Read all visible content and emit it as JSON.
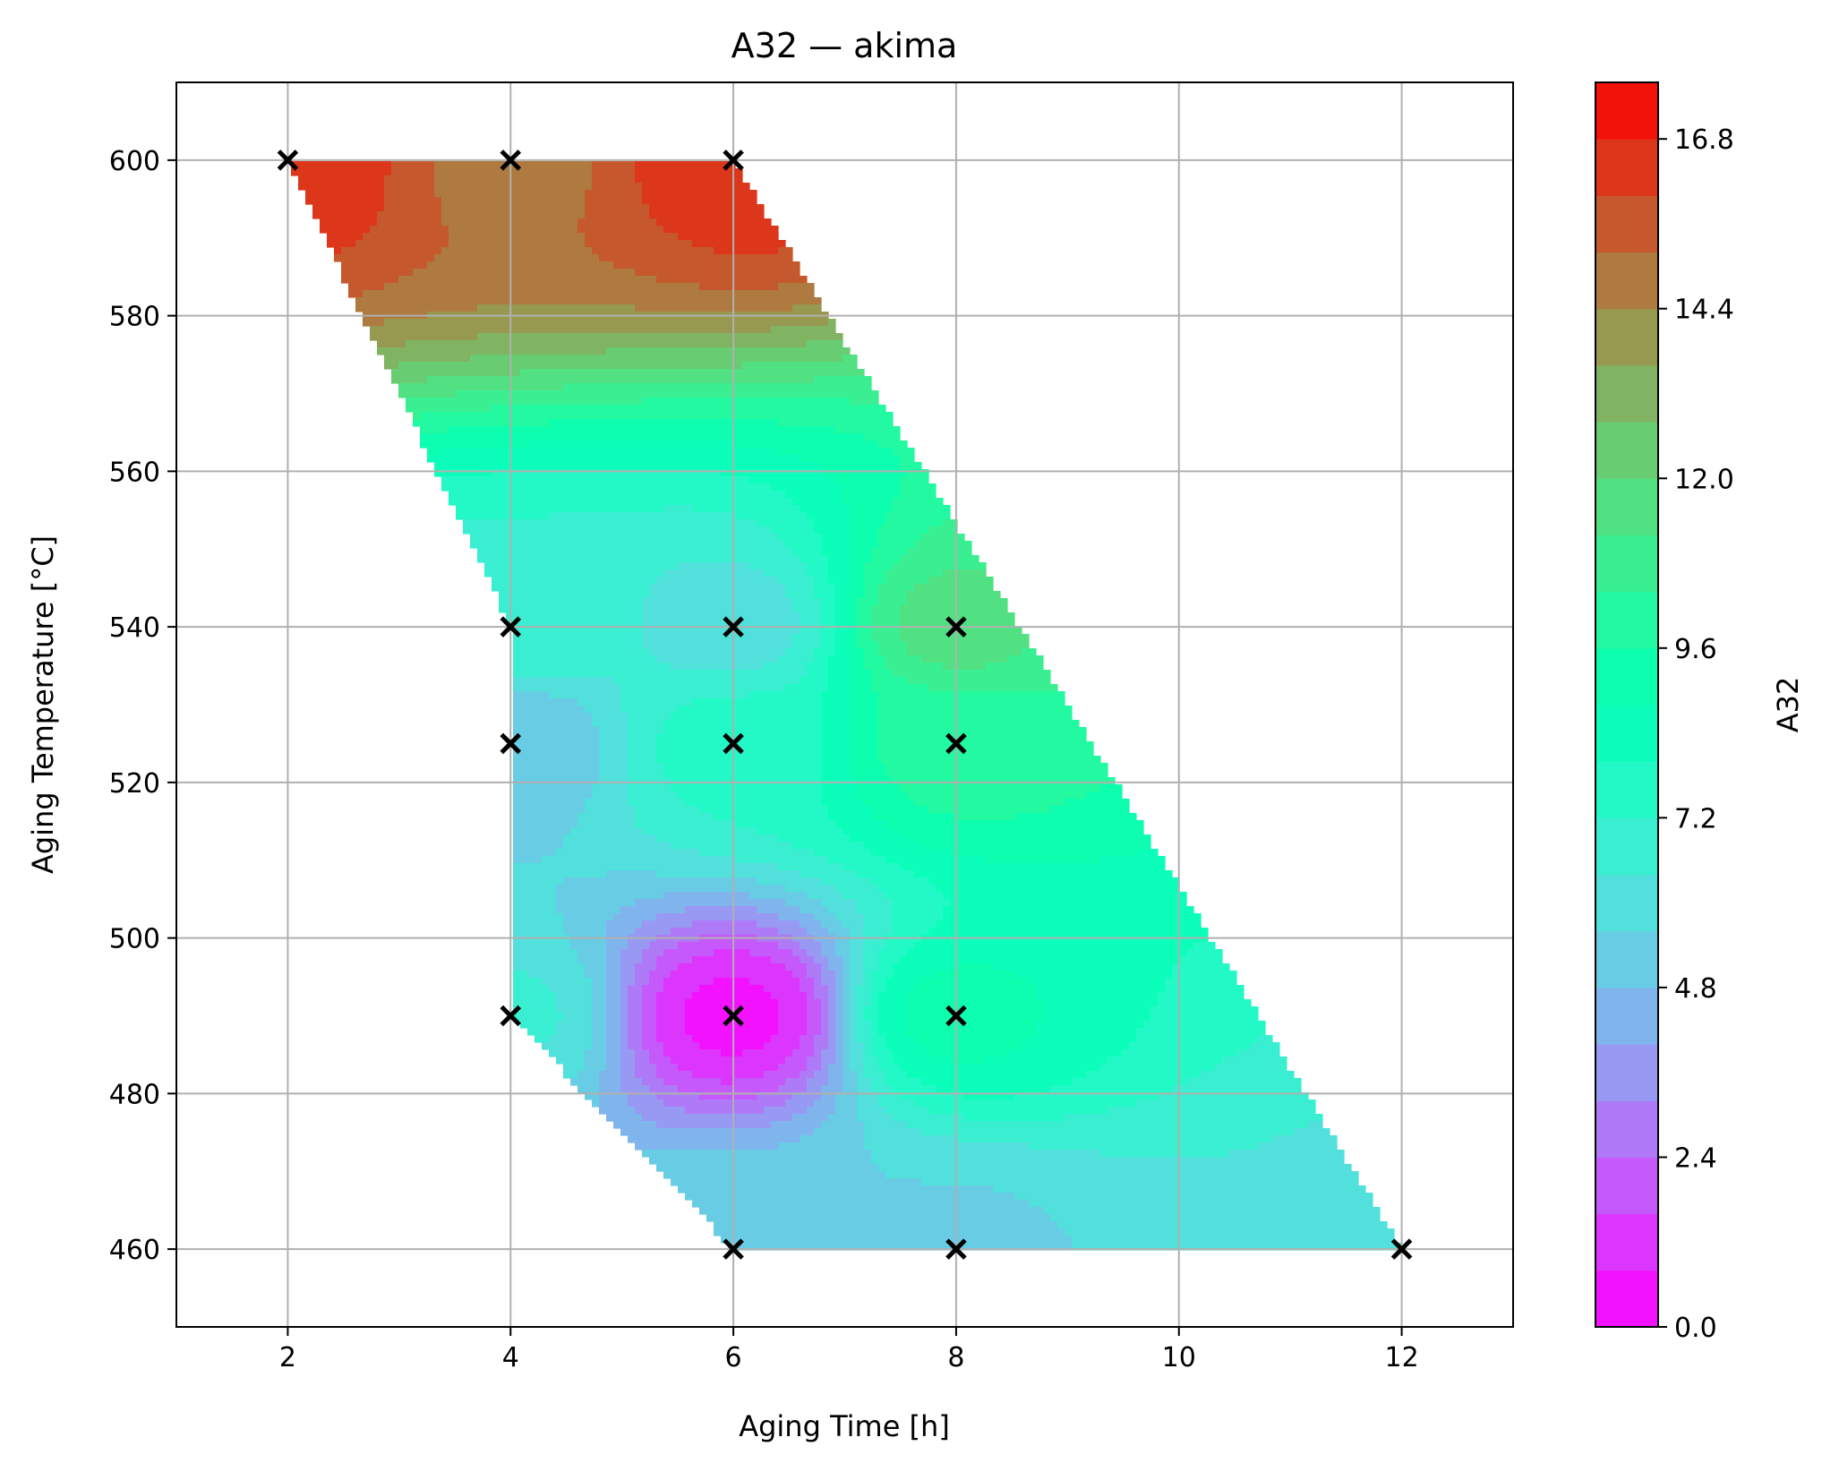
{
  "chart_data": {
    "type": "heatmap",
    "title": "A32 — akima",
    "xlabel": "Aging Time [h]",
    "ylabel": "Aging Temperature [°C]",
    "xlim": [
      1,
      13
    ],
    "ylim": [
      450,
      610
    ],
    "x_ticks": [
      2,
      4,
      6,
      8,
      10,
      12
    ],
    "y_ticks": [
      460,
      480,
      500,
      520,
      540,
      560,
      580,
      600
    ],
    "grid": true,
    "colorbar": {
      "label": "A32",
      "ticks": [
        "0.0",
        "2.4",
        "4.8",
        "7.2",
        "9.6",
        "12.0",
        "14.4",
        "16.8"
      ],
      "range": [
        0,
        17.6
      ],
      "level_step": 0.8,
      "colormap": "rainbow"
    },
    "samples": [
      {
        "x": 2,
        "y": 600,
        "value": 16.6
      },
      {
        "x": 4,
        "y": 600,
        "value": 15.0
      },
      {
        "x": 6,
        "y": 600,
        "value": 16.5
      },
      {
        "x": 4,
        "y": 540,
        "value": 7.0
      },
      {
        "x": 6,
        "y": 540,
        "value": 6.0
      },
      {
        "x": 8,
        "y": 540,
        "value": 11.5
      },
      {
        "x": 4,
        "y": 525,
        "value": 4.8
      },
      {
        "x": 6,
        "y": 525,
        "value": 7.5
      },
      {
        "x": 8,
        "y": 525,
        "value": 10.0
      },
      {
        "x": 4,
        "y": 490,
        "value": 6.5
      },
      {
        "x": 6,
        "y": 490,
        "value": 0.6
      },
      {
        "x": 8,
        "y": 490,
        "value": 9.0
      },
      {
        "x": 6,
        "y": 460,
        "value": 5.5
      },
      {
        "x": 8,
        "y": 460,
        "value": 5.5
      },
      {
        "x": 12,
        "y": 460,
        "value": 6.2
      }
    ]
  }
}
